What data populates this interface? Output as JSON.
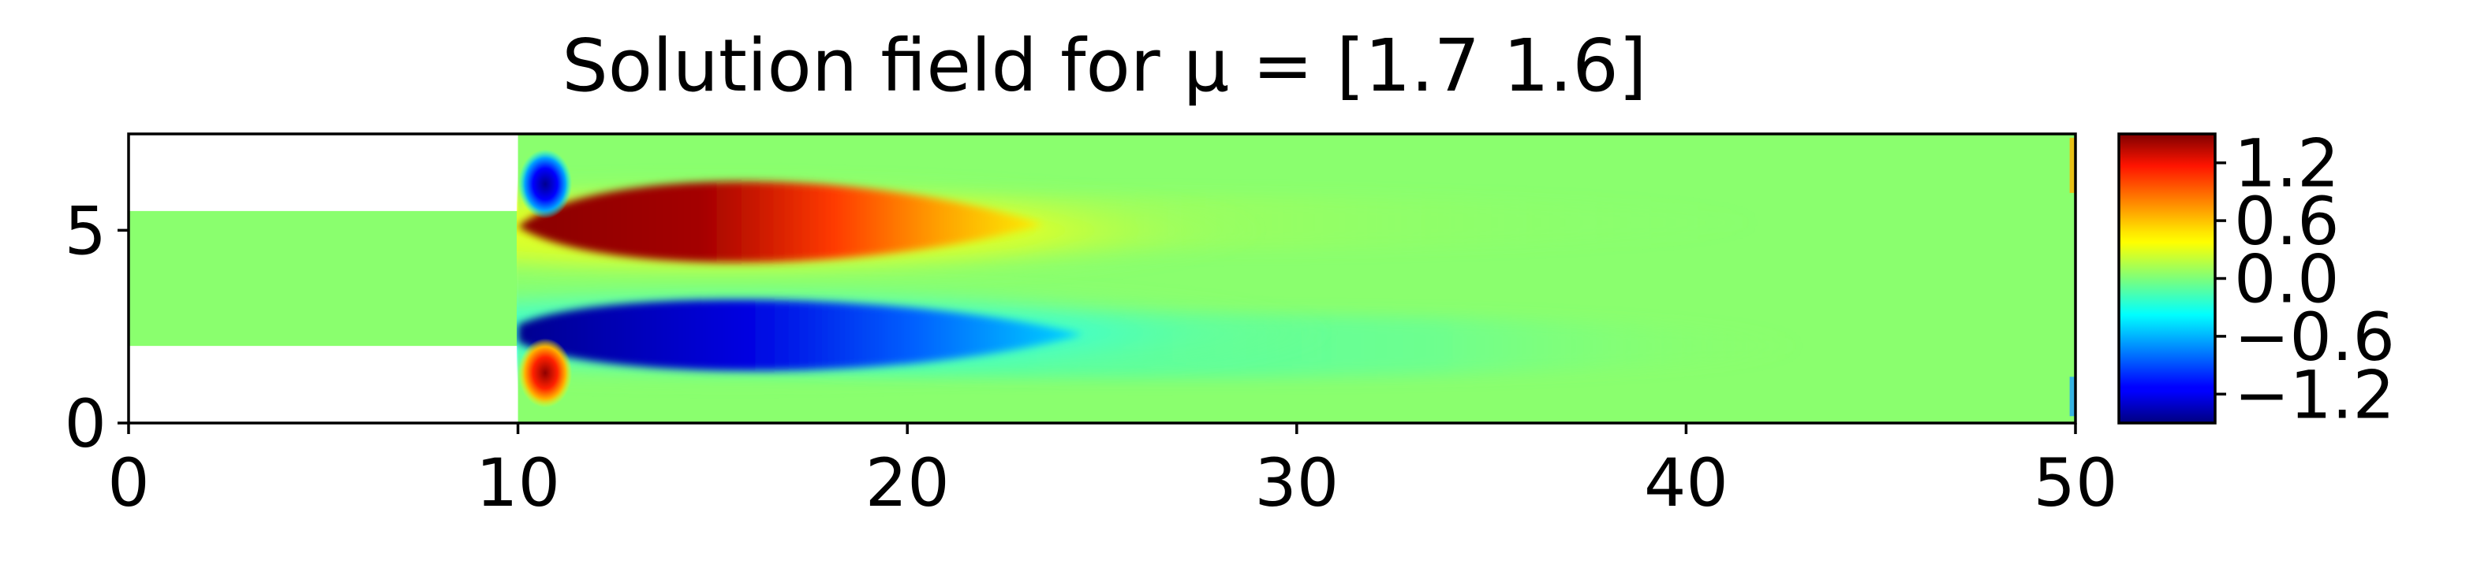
{
  "chart_data": {
    "type": "heatmap",
    "title": "Solution field for μ = [1.7 1.6]",
    "xlabel": "",
    "ylabel": "",
    "xlim": [
      0,
      50
    ],
    "ylim": [
      0,
      7.5
    ],
    "xticks": [
      0,
      10,
      20,
      30,
      40,
      50
    ],
    "yticks": [
      0,
      5
    ],
    "colormap": "jet",
    "domain": {
      "inlet_channel": {
        "x": [
          0,
          10
        ],
        "y": [
          2,
          5.5
        ]
      },
      "main_channel": {
        "x": [
          10,
          50
        ],
        "y": [
          0,
          7.5
        ]
      }
    },
    "colorbar": {
      "range": [
        -1.5,
        1.5
      ],
      "ticks": [
        1.2,
        0.6,
        0.0,
        -0.6,
        -1.2
      ],
      "tick_labels": [
        "1.2",
        "0.6",
        "0.0",
        "−0.6",
        "−1.2"
      ]
    },
    "features": [
      {
        "name": "upper small vortex",
        "x": 10.7,
        "y": 6.2,
        "value": -1.4
      },
      {
        "name": "upper jet",
        "x": 15.0,
        "y": 5.0,
        "value": 1.5
      },
      {
        "name": "lower jet",
        "x": 15.0,
        "y": 2.5,
        "value": -1.5
      },
      {
        "name": "lower small vortex",
        "x": 10.7,
        "y": 1.3,
        "value": 1.4
      }
    ],
    "background_value": 0.0,
    "grid": false
  }
}
